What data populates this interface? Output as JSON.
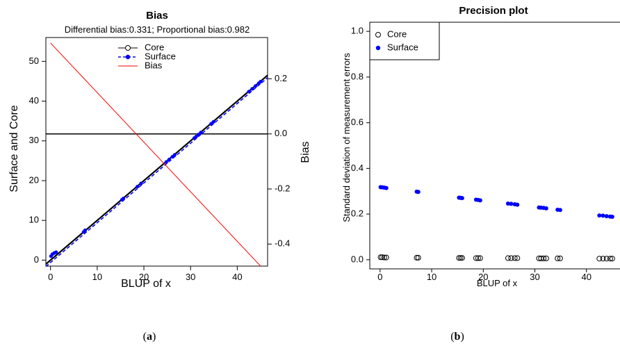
{
  "chart_data": [
    {
      "type": "line",
      "title": "Bias",
      "subtitle": "Differential bias:0.331; Proportional bias:0.982",
      "xlabel": "BLUP of x",
      "ylabel": "Surface and Core",
      "y2label": "Bias",
      "caption_letter": "a",
      "xlim": [
        -1,
        46.5
      ],
      "ylim": [
        -1.5,
        56
      ],
      "y2lim": [
        -0.48,
        0.35
      ],
      "xticks": [
        0,
        10,
        20,
        30,
        40
      ],
      "yticks": [
        0,
        10,
        20,
        30,
        40,
        50
      ],
      "y2ticks": [
        0.2,
        0.0,
        -0.2,
        -0.4
      ],
      "y2ticklabels": [
        "0.2",
        "0.0",
        "-0.2",
        "-0.4"
      ],
      "legend_position": "top",
      "series": [
        {
          "name": "Core",
          "kind": "line-circle",
          "color": "#000000",
          "x": [
            -1,
            46.5
          ],
          "y": [
            -1,
            46.5
          ]
        },
        {
          "name": "Surface",
          "kind": "dashed-dot",
          "color": "#0000ff",
          "x": [
            -1,
            46.5
          ],
          "y": [
            -1.6,
            45.9
          ]
        },
        {
          "name": "Bias",
          "kind": "line",
          "color": "#ff0000",
          "axis": "right",
          "x": [
            0,
            45
          ],
          "y": [
            0.33,
            -0.48
          ]
        }
      ],
      "zero_line": {
        "axis": "right",
        "value": 0.0,
        "color": "#000000"
      },
      "surface_points": {
        "x": [
          0.1,
          0.4,
          0.8,
          1.2,
          7.1,
          7.4,
          15.3,
          15.6,
          18.6,
          19.4,
          24.8,
          25.4,
          26.1,
          26.6,
          30.8,
          31.2,
          31.7,
          32.2,
          34.4,
          34.9,
          42.5,
          43.2,
          43.9,
          44.6,
          45.0
        ],
        "y": [
          1.0,
          1.5,
          1.8,
          2.0,
          7.1,
          7.5,
          15.2,
          15.5,
          18.5,
          19.3,
          24.7,
          25.3,
          26.0,
          26.5,
          30.7,
          31.1,
          31.6,
          32.1,
          34.3,
          34.8,
          42.4,
          43.1,
          43.8,
          44.5,
          44.9
        ]
      }
    },
    {
      "type": "scatter",
      "title": "Precision plot",
      "xlabel": "BLUP of x",
      "ylabel": "Standard deviation of measurement errors",
      "caption_letter": "b",
      "xlim": [
        -2,
        46.5
      ],
      "ylim": [
        -0.04,
        1.04
      ],
      "xticks": [
        0,
        10,
        20,
        30,
        40
      ],
      "yticks": [
        0.0,
        0.2,
        0.4,
        0.6,
        0.8,
        1.0
      ],
      "yticklabels": [
        "0.0",
        "0.2",
        "0.4",
        "0.6",
        "0.8",
        "1.0"
      ],
      "legend_position": "top-left",
      "series": [
        {
          "name": "Core",
          "marker": "open-circle",
          "color": "#000000",
          "x": [
            0.1,
            0.4,
            0.8,
            1.2,
            7.1,
            7.4,
            15.3,
            15.6,
            15.9,
            18.6,
            19.0,
            19.4,
            24.8,
            25.4,
            26.1,
            26.6,
            30.8,
            31.2,
            31.7,
            32.2,
            34.4,
            34.9,
            42.5,
            43.2,
            43.9,
            44.6,
            45.0
          ],
          "y": [
            0.011,
            0.011,
            0.01,
            0.01,
            0.009,
            0.009,
            0.008,
            0.008,
            0.008,
            0.007,
            0.007,
            0.007,
            0.007,
            0.007,
            0.007,
            0.007,
            0.006,
            0.006,
            0.006,
            0.006,
            0.006,
            0.006,
            0.005,
            0.005,
            0.005,
            0.005,
            0.005
          ]
        },
        {
          "name": "Surface",
          "marker": "filled-circle",
          "color": "#0000ff",
          "x": [
            0.1,
            0.4,
            0.8,
            1.2,
            7.1,
            7.4,
            15.3,
            15.6,
            15.9,
            18.6,
            19.0,
            19.4,
            24.8,
            25.4,
            26.1,
            26.6,
            30.8,
            31.2,
            31.7,
            32.2,
            34.4,
            34.9,
            42.5,
            43.2,
            43.9,
            44.6,
            45.0
          ],
          "y": [
            0.318,
            0.317,
            0.316,
            0.314,
            0.298,
            0.297,
            0.272,
            0.271,
            0.27,
            0.263,
            0.262,
            0.26,
            0.246,
            0.245,
            0.243,
            0.241,
            0.229,
            0.228,
            0.227,
            0.225,
            0.219,
            0.218,
            0.194,
            0.193,
            0.191,
            0.189,
            0.188
          ]
        }
      ]
    }
  ]
}
